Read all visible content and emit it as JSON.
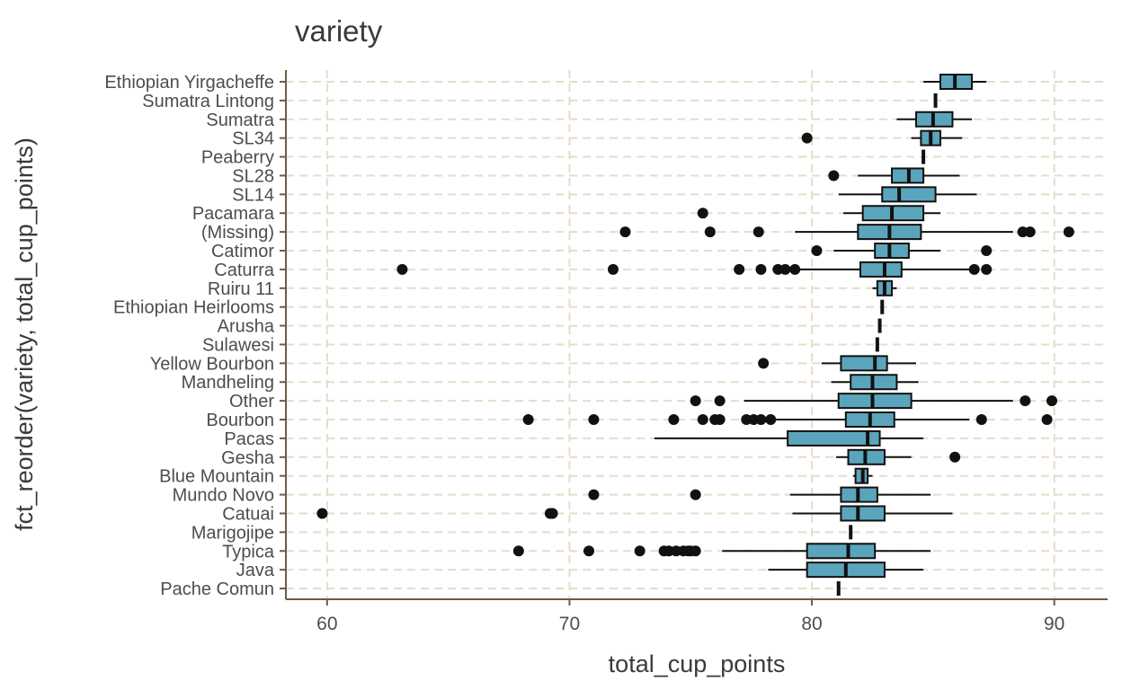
{
  "chart_data": {
    "type": "boxplot",
    "title": "variety",
    "xlabel": "total_cup_points",
    "ylabel": "fct_reorder(variety, total_cup_points)",
    "xlim": [
      58.3,
      92.2
    ],
    "x_ticks": [
      60,
      70,
      80,
      90
    ],
    "grid": "dashed",
    "colors": {
      "box_fill": "#5BA5BC",
      "grid": "#E7DCC9",
      "axis": "#6F5B45",
      "text": "#4d4d4d"
    },
    "categories": [
      "Ethiopian Yirgacheffe",
      "Sumatra Lintong",
      "Sumatra",
      "SL34",
      "Peaberry",
      "SL28",
      "SL14",
      "Pacamara",
      "(Missing)",
      "Catimor",
      "Caturra",
      "Ruiru 11",
      "Ethiopian Heirlooms",
      "Arusha",
      "Sulawesi",
      "Yellow Bourbon",
      "Mandheling",
      "Other",
      "Bourbon",
      "Pacas",
      "Gesha",
      "Blue Mountain",
      "Mundo Novo",
      "Catuai",
      "Marigojipe",
      "Typica",
      "Java",
      "Pache Comun"
    ],
    "boxes": [
      {
        "category": "Ethiopian Yirgacheffe",
        "min": 84.6,
        "q1": 85.3,
        "median": 85.9,
        "q3": 86.6,
        "max": 87.2,
        "outliers": []
      },
      {
        "category": "Sumatra Lintong",
        "min": 85.1,
        "q1": 85.1,
        "median": 85.1,
        "q3": 85.1,
        "max": 85.1,
        "outliers": []
      },
      {
        "category": "Sumatra",
        "min": 83.5,
        "q1": 84.3,
        "median": 85.0,
        "q3": 85.8,
        "max": 86.6,
        "outliers": []
      },
      {
        "category": "SL34",
        "min": 84.1,
        "q1": 84.5,
        "median": 84.9,
        "q3": 85.3,
        "max": 86.2,
        "outliers": [
          79.8
        ]
      },
      {
        "category": "Peaberry",
        "min": 84.6,
        "q1": 84.6,
        "median": 84.6,
        "q3": 84.6,
        "max": 84.6,
        "outliers": []
      },
      {
        "category": "SL28",
        "min": 81.9,
        "q1": 83.3,
        "median": 84.0,
        "q3": 84.6,
        "max": 86.1,
        "outliers": [
          80.9
        ]
      },
      {
        "category": "SL14",
        "min": 81.1,
        "q1": 82.9,
        "median": 83.6,
        "q3": 85.1,
        "max": 86.8,
        "outliers": []
      },
      {
        "category": "Pacamara",
        "min": 81.3,
        "q1": 82.1,
        "median": 83.3,
        "q3": 84.6,
        "max": 85.3,
        "outliers": [
          75.5
        ]
      },
      {
        "category": "(Missing)",
        "min": 79.3,
        "q1": 81.9,
        "median": 83.2,
        "q3": 84.5,
        "max": 88.3,
        "outliers": [
          72.3,
          75.8,
          77.8,
          88.7,
          89.0,
          90.6
        ]
      },
      {
        "category": "Catimor",
        "min": 80.9,
        "q1": 82.6,
        "median": 83.2,
        "q3": 84.0,
        "max": 85.3,
        "outliers": [
          80.2,
          87.2
        ]
      },
      {
        "category": "Caturra",
        "min": 79.3,
        "q1": 82.0,
        "median": 83.0,
        "q3": 83.7,
        "max": 86.5,
        "outliers": [
          63.1,
          71.8,
          77.0,
          77.9,
          78.6,
          78.9,
          79.3,
          86.7,
          87.2
        ]
      },
      {
        "category": "Ruiru 11",
        "min": 82.5,
        "q1": 82.7,
        "median": 83.0,
        "q3": 83.3,
        "max": 83.5,
        "outliers": []
      },
      {
        "category": "Ethiopian Heirlooms",
        "min": 82.9,
        "q1": 82.9,
        "median": 82.9,
        "q3": 82.9,
        "max": 82.9,
        "outliers": []
      },
      {
        "category": "Arusha",
        "min": 82.8,
        "q1": 82.8,
        "median": 82.8,
        "q3": 82.8,
        "max": 82.8,
        "outliers": []
      },
      {
        "category": "Sulawesi",
        "min": 82.7,
        "q1": 82.7,
        "median": 82.7,
        "q3": 82.7,
        "max": 82.7,
        "outliers": []
      },
      {
        "category": "Yellow Bourbon",
        "min": 80.4,
        "q1": 81.2,
        "median": 82.6,
        "q3": 83.1,
        "max": 84.3,
        "outliers": [
          78.0
        ]
      },
      {
        "category": "Mandheling",
        "min": 80.8,
        "q1": 81.6,
        "median": 82.5,
        "q3": 83.5,
        "max": 84.4,
        "outliers": []
      },
      {
        "category": "Other",
        "min": 77.2,
        "q1": 81.1,
        "median": 82.5,
        "q3": 84.1,
        "max": 88.3,
        "outliers": [
          75.2,
          76.2,
          88.8,
          89.9
        ]
      },
      {
        "category": "Bourbon",
        "min": 78.4,
        "q1": 81.4,
        "median": 82.4,
        "q3": 83.4,
        "max": 86.5,
        "outliers": [
          68.3,
          71.0,
          74.3,
          75.5,
          76.0,
          76.2,
          77.3,
          77.6,
          77.9,
          78.3,
          87.0,
          89.7
        ]
      },
      {
        "category": "Pacas",
        "min": 73.5,
        "q1": 79.0,
        "median": 82.3,
        "q3": 82.8,
        "max": 84.6,
        "outliers": []
      },
      {
        "category": "Gesha",
        "min": 81.0,
        "q1": 81.5,
        "median": 82.2,
        "q3": 83.0,
        "max": 84.1,
        "outliers": [
          85.9
        ]
      },
      {
        "category": "Blue Mountain",
        "min": 81.7,
        "q1": 81.8,
        "median": 82.1,
        "q3": 82.3,
        "max": 82.5,
        "outliers": []
      },
      {
        "category": "Mundo Novo",
        "min": 79.1,
        "q1": 81.2,
        "median": 81.9,
        "q3": 82.7,
        "max": 84.9,
        "outliers": [
          71.0,
          75.2
        ]
      },
      {
        "category": "Catuai",
        "min": 79.2,
        "q1": 81.2,
        "median": 81.9,
        "q3": 83.0,
        "max": 85.8,
        "outliers": [
          59.8,
          69.2,
          69.3
        ]
      },
      {
        "category": "Marigojipe",
        "min": 81.6,
        "q1": 81.6,
        "median": 81.6,
        "q3": 81.6,
        "max": 81.6,
        "outliers": []
      },
      {
        "category": "Typica",
        "min": 76.3,
        "q1": 79.8,
        "median": 81.5,
        "q3": 82.6,
        "max": 84.9,
        "outliers": [
          67.9,
          70.8,
          72.9,
          73.9,
          74.1,
          74.4,
          74.7,
          74.9,
          75.0,
          75.2
        ]
      },
      {
        "category": "Java",
        "min": 78.2,
        "q1": 79.8,
        "median": 81.4,
        "q3": 83.0,
        "max": 84.6,
        "outliers": []
      },
      {
        "category": "Pache Comun",
        "min": 81.1,
        "q1": 81.1,
        "median": 81.1,
        "q3": 81.1,
        "max": 81.1,
        "outliers": []
      }
    ]
  }
}
